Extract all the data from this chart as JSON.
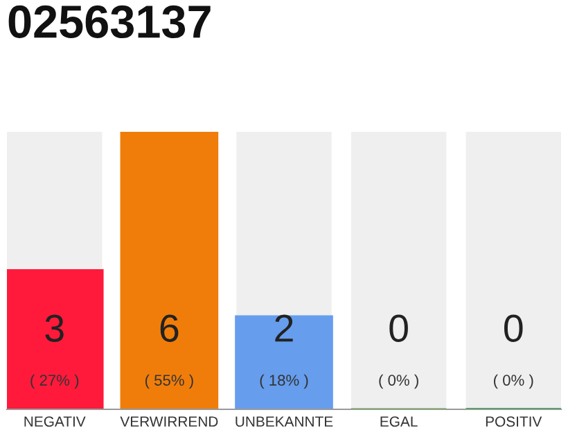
{
  "chart_data": {
    "type": "bar",
    "title": "02563137",
    "categories": [
      "NEGATIV",
      "VERWIRREND",
      "UNBEKANNTE",
      "EGAL",
      "POSITIV"
    ],
    "values": [
      3,
      6,
      2,
      0,
      0
    ],
    "colors": [
      "#ff1a3c",
      "#f07d0a",
      "#669ded",
      "#88cc66",
      "#22aa44"
    ],
    "data_labels": true,
    "annotations": [
      "( 27% )",
      "( 55% )",
      "( 18% )",
      "( 0% )",
      "( 0% )"
    ],
    "grid": false,
    "legend": false,
    "tick_labels": "x"
  }
}
